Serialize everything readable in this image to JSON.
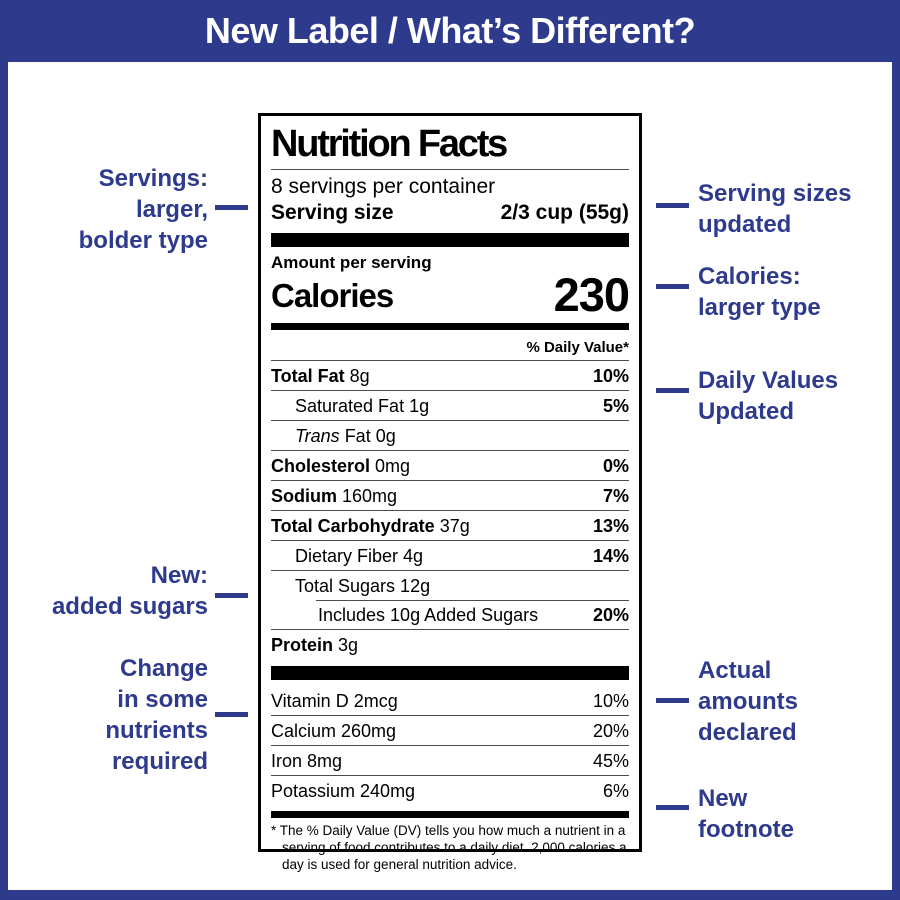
{
  "header": {
    "title": "New Label / What’s Different?"
  },
  "colors": {
    "accent": "#2e3a8c",
    "label_border": "#000000",
    "background": "#ffffff"
  },
  "annotations": {
    "left": [
      {
        "lines": [
          "Servings:",
          "larger,",
          "bolder type"
        ]
      },
      {
        "lines": [
          "New:",
          "added sugars"
        ]
      },
      {
        "lines": [
          "Change",
          "in some",
          "nutrients",
          "required"
        ]
      }
    ],
    "right": [
      {
        "lines": [
          "Serving sizes",
          "updated"
        ]
      },
      {
        "lines": [
          "Calories:",
          "larger type"
        ]
      },
      {
        "lines": [
          "Daily Values",
          "Updated"
        ]
      },
      {
        "lines": [
          "Actual",
          "amounts",
          "declared"
        ]
      },
      {
        "lines": [
          "New",
          "footnote"
        ]
      }
    ]
  },
  "label": {
    "title": "Nutrition Facts",
    "servings_per_container": "8 servings per container",
    "serving_size_label": "Serving size",
    "serving_size_value": "2/3 cup (55g)",
    "amount_per_serving": "Amount per serving",
    "calories_label": "Calories",
    "calories_value": "230",
    "daily_value_header": "% Daily Value*",
    "rows": [
      {
        "bold": "Total Fat",
        "italic": "",
        "text": " 8g",
        "pct": "10%",
        "pct_bold": true,
        "indent": 0,
        "rule": "full"
      },
      {
        "bold": "",
        "italic": "",
        "text": "Saturated Fat 1g",
        "pct": "5%",
        "pct_bold": true,
        "indent": 1,
        "rule": "full"
      },
      {
        "bold": "",
        "italic": "Trans",
        "text": " Fat 0g",
        "pct": "",
        "pct_bold": false,
        "indent": 1,
        "rule": "full"
      },
      {
        "bold": "Cholesterol",
        "italic": "",
        "text": " 0mg",
        "pct": "0%",
        "pct_bold": true,
        "indent": 0,
        "rule": "full"
      },
      {
        "bold": "Sodium",
        "italic": "",
        "text": " 160mg",
        "pct": "7%",
        "pct_bold": true,
        "indent": 0,
        "rule": "full"
      },
      {
        "bold": "Total Carbohydrate",
        "italic": "",
        "text": " 37g",
        "pct": "13%",
        "pct_bold": true,
        "indent": 0,
        "rule": "full"
      },
      {
        "bold": "",
        "italic": "",
        "text": "Dietary Fiber 4g",
        "pct": "14%",
        "pct_bold": true,
        "indent": 1,
        "rule": "full"
      },
      {
        "bold": "",
        "italic": "",
        "text": "Total Sugars 12g",
        "pct": "",
        "pct_bold": false,
        "indent": 1,
        "rule": "full"
      },
      {
        "bold": "",
        "italic": "",
        "text": "Includes 10g Added Sugars",
        "pct": "20%",
        "pct_bold": true,
        "indent": 2,
        "rule": "partial"
      },
      {
        "bold": "Protein",
        "italic": "",
        "text": " 3g",
        "pct": "",
        "pct_bold": false,
        "indent": 0,
        "rule": "full"
      }
    ],
    "vitamins": [
      {
        "text": "Vitamin D 2mcg",
        "pct": "10%"
      },
      {
        "text": "Calcium 260mg",
        "pct": "20%"
      },
      {
        "text": "Iron 8mg",
        "pct": "45%"
      },
      {
        "text": "Potassium 240mg",
        "pct": "6%"
      }
    ],
    "footnote": "* The % Daily Value (DV) tells you how much a nutrient in a serving of food contributes to a daily diet. 2,000 calories a day is used for general nutrition advice."
  }
}
